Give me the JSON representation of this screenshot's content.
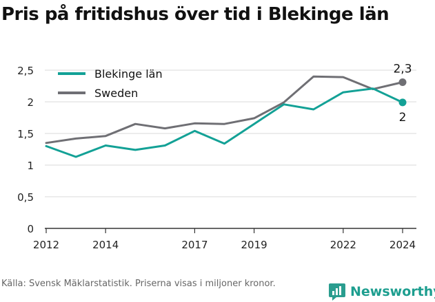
{
  "title": "Pris på fritidshus över tid i Blekinge län",
  "source": "Källa: Svensk Mäklarstatistik. Priserna visas i miljoner kronor.",
  "brand": "Newsworthy",
  "colors": {
    "blekinge": "#13a196",
    "sweden": "#6f6f74",
    "grid": "#d9d9d9",
    "axis": "#333333"
  },
  "chart_data": {
    "type": "line",
    "title": "Pris på fritidshus över tid i Blekinge län",
    "xlabel": "",
    "ylabel": "",
    "xlim": [
      2012,
      2024
    ],
    "ylim": [
      0,
      2.5
    ],
    "x_ticks": [
      2012,
      2014,
      2017,
      2019,
      2022,
      2024
    ],
    "y_ticks": [
      0,
      0.5,
      1,
      1.5,
      2,
      2.5
    ],
    "y_tick_labels": [
      "0",
      "0,5",
      "1",
      "1,5",
      "2",
      "2,5"
    ],
    "grid": true,
    "legend": "top-left",
    "x": [
      2012,
      2013,
      2014,
      2015,
      2016,
      2017,
      2018,
      2019,
      2020,
      2021,
      2022,
      2023,
      2024
    ],
    "series": [
      {
        "name": "Blekinge län",
        "color": "#13a196",
        "values": [
          1.3,
          1.13,
          1.31,
          1.24,
          1.31,
          1.54,
          1.34,
          1.65,
          1.96,
          1.88,
          2.15,
          2.21,
          1.99
        ],
        "end_label": "2"
      },
      {
        "name": "Sweden",
        "color": "#6f6f74",
        "values": [
          1.35,
          1.42,
          1.46,
          1.65,
          1.58,
          1.66,
          1.65,
          1.74,
          1.99,
          2.4,
          2.39,
          2.2,
          2.31
        ],
        "end_label": "2,3"
      }
    ]
  }
}
